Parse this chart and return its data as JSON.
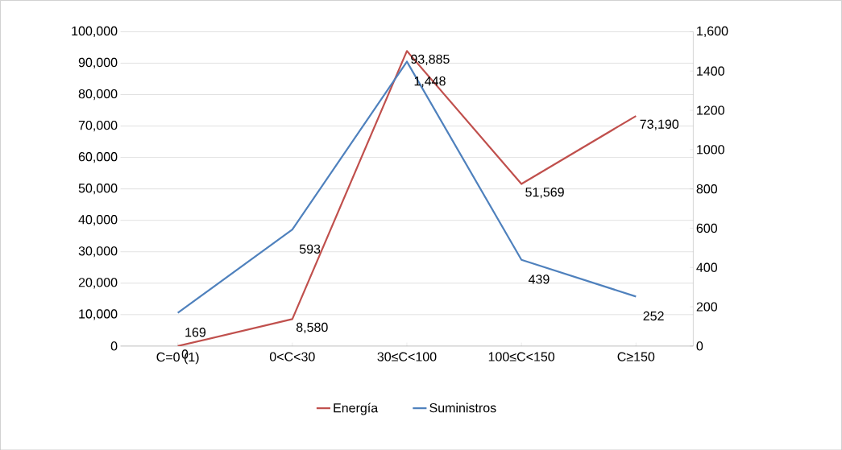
{
  "chart_data": {
    "type": "line",
    "categories": [
      "C=0 (1)",
      "0<C<30",
      "30≤C<100",
      "100≤C<150",
      "C≥150"
    ],
    "series": [
      {
        "name": "Energía",
        "color": "#c0504d",
        "values": [
          0,
          8580,
          93885,
          51569,
          73190
        ],
        "value_labels": [
          "0",
          "8,580",
          "93,885",
          "51,569",
          "73,190"
        ]
      },
      {
        "name": "Suministros",
        "color": "#4f81bd",
        "axis": "y2",
        "values": [
          169,
          593,
          1448,
          439,
          252
        ],
        "value_labels": [
          "169",
          "593",
          "1,448",
          "439",
          "252"
        ]
      }
    ],
    "ylim": [
      0,
      100000
    ],
    "yticks": [
      0,
      {
        "value": 10000,
        "label": "10,000"
      },
      {
        "value": 20000,
        "label": "20,000"
      },
      {
        "value": 30000,
        "label": "30,000"
      },
      {
        "value": 40000,
        "label": "40,000"
      },
      {
        "value": 50000,
        "label": "50,000"
      },
      {
        "value": 60000,
        "label": "60,000"
      },
      {
        "value": 70000,
        "label": "70,000"
      },
      {
        "value": 80000,
        "label": "80,000"
      },
      {
        "value": 90000,
        "label": "90,000"
      },
      {
        "value": 100000,
        "label": "100,000"
      }
    ],
    "y2lim": [
      0,
      1600
    ],
    "y2ticks": [
      0,
      200,
      400,
      600,
      800,
      1000,
      1200,
      1400,
      {
        "value": 1600,
        "label": "1,600"
      }
    ],
    "grid": "y",
    "legend": "bottom",
    "marker": "none",
    "line_style": "solid"
  }
}
